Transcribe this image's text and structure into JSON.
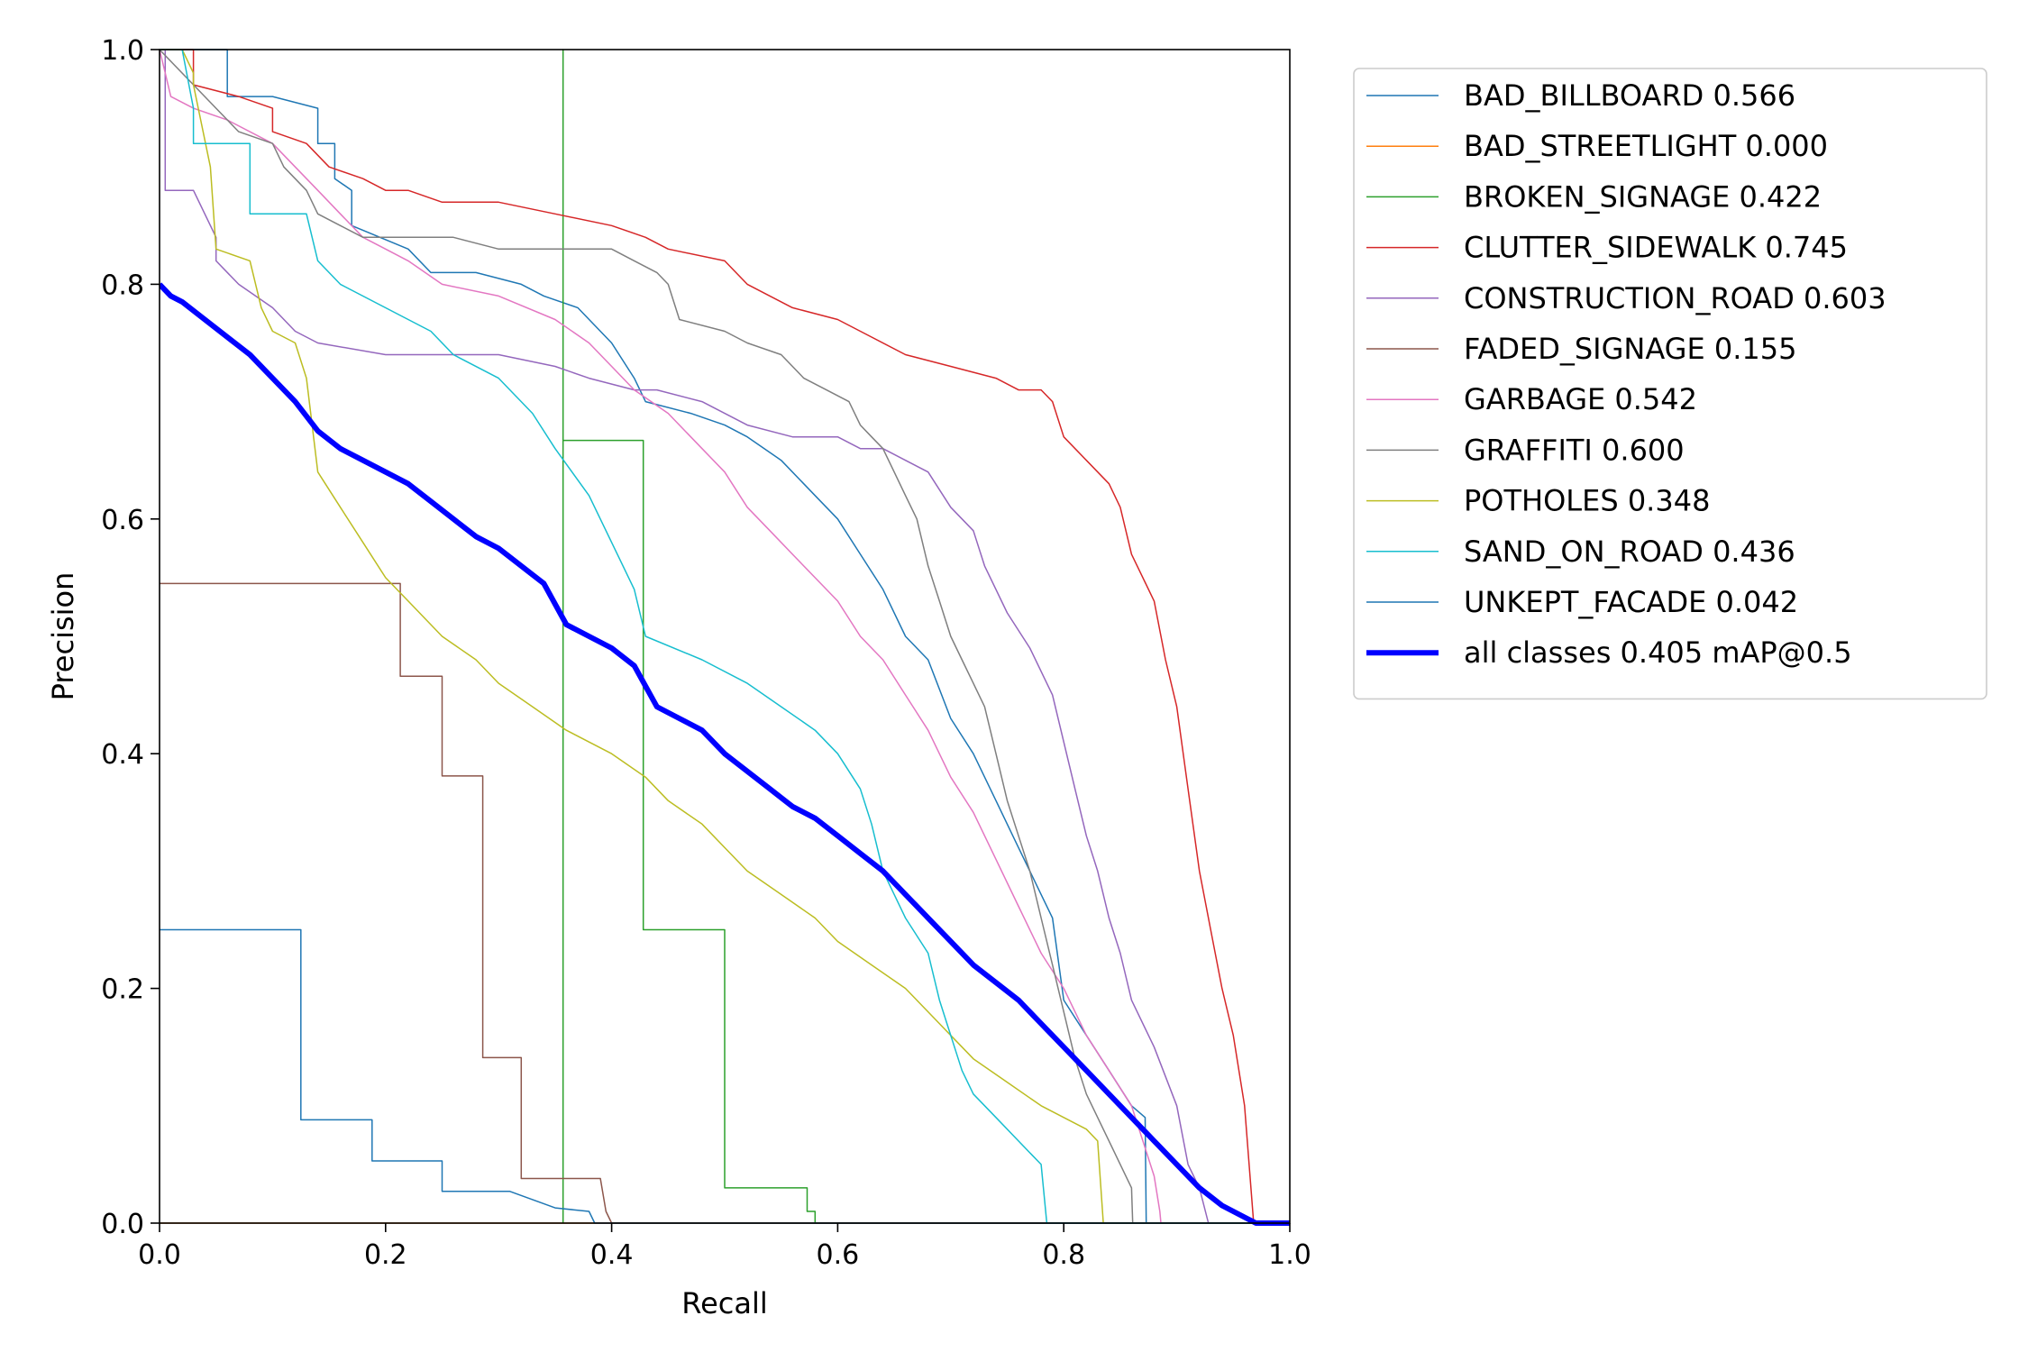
{
  "chart_data": {
    "type": "line",
    "title": "",
    "xlabel": "Recall",
    "ylabel": "Precision",
    "xlim": [
      0,
      1
    ],
    "ylim": [
      0,
      1
    ],
    "xticks": [
      "0.0",
      "0.2",
      "0.4",
      "0.6",
      "0.8",
      "1.0"
    ],
    "yticks": [
      "0.0",
      "0.2",
      "0.4",
      "0.6",
      "0.8",
      "1.0"
    ],
    "grid": false,
    "legend_position": "outside-top-right",
    "series": [
      {
        "name": "BAD_BILLBOARD 0.566",
        "color": "#1f77b4",
        "width": 1.5,
        "x": [
          0,
          0.03,
          0.06,
          0.06,
          0.1,
          0.14,
          0.14,
          0.155,
          0.155,
          0.17,
          0.17,
          0.22,
          0.24,
          0.28,
          0.32,
          0.34,
          0.37,
          0.4,
          0.42,
          0.43,
          0.47,
          0.5,
          0.52,
          0.55,
          0.58,
          0.6,
          0.62,
          0.64,
          0.66,
          0.68,
          0.7,
          0.72,
          0.74,
          0.76,
          0.78,
          0.79,
          0.8,
          0.82,
          0.84,
          0.86,
          0.872,
          0.873,
          1.0
        ],
        "y": [
          1.0,
          1.0,
          1.0,
          0.96,
          0.96,
          0.95,
          0.92,
          0.92,
          0.89,
          0.88,
          0.85,
          0.83,
          0.81,
          0.81,
          0.8,
          0.79,
          0.78,
          0.75,
          0.72,
          0.7,
          0.69,
          0.68,
          0.67,
          0.65,
          0.62,
          0.6,
          0.57,
          0.54,
          0.5,
          0.48,
          0.43,
          0.4,
          0.36,
          0.32,
          0.28,
          0.26,
          0.19,
          0.16,
          0.13,
          0.1,
          0.09,
          0.0,
          0.0
        ]
      },
      {
        "name": "BAD_STREETLIGHT 0.000",
        "color": "#ff7f0e",
        "width": 1.5,
        "x": [
          0,
          1.0
        ],
        "y": [
          0.0,
          0.0
        ]
      },
      {
        "name": "BROKEN_SIGNAGE 0.422",
        "color": "#2ca02c",
        "width": 1.5,
        "x": [
          0.357,
          0.357,
          0.357,
          0.428,
          0.428,
          0.5,
          0.5,
          0.573,
          0.573,
          0.58,
          0.58,
          1.0
        ],
        "y": [
          0.0,
          1.0,
          0.667,
          0.667,
          0.25,
          0.25,
          0.03,
          0.03,
          0.01,
          0.01,
          0.0,
          0.0
        ]
      },
      {
        "name": "CLUTTER_SIDEWALK 0.745",
        "color": "#d62728",
        "width": 1.5,
        "x": [
          0,
          0.03,
          0.03,
          0.07,
          0.1,
          0.1,
          0.13,
          0.15,
          0.18,
          0.2,
          0.22,
          0.25,
          0.3,
          0.35,
          0.4,
          0.43,
          0.45,
          0.5,
          0.52,
          0.56,
          0.6,
          0.62,
          0.66,
          0.7,
          0.74,
          0.76,
          0.78,
          0.79,
          0.8,
          0.82,
          0.84,
          0.85,
          0.86,
          0.88,
          0.89,
          0.9,
          0.91,
          0.92,
          0.93,
          0.94,
          0.95,
          0.96,
          0.968,
          0.969,
          1.0
        ],
        "y": [
          1.0,
          1.0,
          0.97,
          0.96,
          0.95,
          0.93,
          0.92,
          0.9,
          0.89,
          0.88,
          0.88,
          0.87,
          0.87,
          0.86,
          0.85,
          0.84,
          0.83,
          0.82,
          0.8,
          0.78,
          0.77,
          0.76,
          0.74,
          0.73,
          0.72,
          0.71,
          0.71,
          0.7,
          0.67,
          0.65,
          0.63,
          0.61,
          0.57,
          0.53,
          0.48,
          0.44,
          0.37,
          0.3,
          0.25,
          0.2,
          0.16,
          0.1,
          0.0,
          0.0,
          0.0
        ]
      },
      {
        "name": "CONSTRUCTION_ROAD 0.603",
        "color": "#9467bd",
        "width": 1.5,
        "x": [
          0,
          0.005,
          0.005,
          0.03,
          0.04,
          0.05,
          0.05,
          0.07,
          0.1,
          0.12,
          0.14,
          0.2,
          0.3,
          0.35,
          0.38,
          0.42,
          0.44,
          0.48,
          0.52,
          0.56,
          0.6,
          0.62,
          0.64,
          0.66,
          0.68,
          0.7,
          0.72,
          0.73,
          0.75,
          0.77,
          0.79,
          0.8,
          0.81,
          0.82,
          0.83,
          0.84,
          0.85,
          0.86,
          0.88,
          0.9,
          0.91,
          0.92,
          0.928,
          0.929,
          1.0
        ],
        "y": [
          1.0,
          1.0,
          0.88,
          0.88,
          0.86,
          0.84,
          0.82,
          0.8,
          0.78,
          0.76,
          0.75,
          0.74,
          0.74,
          0.73,
          0.72,
          0.71,
          0.71,
          0.7,
          0.68,
          0.67,
          0.67,
          0.66,
          0.66,
          0.65,
          0.64,
          0.61,
          0.59,
          0.56,
          0.52,
          0.49,
          0.45,
          0.41,
          0.37,
          0.33,
          0.3,
          0.26,
          0.23,
          0.19,
          0.15,
          0.1,
          0.05,
          0.03,
          0.0,
          0.0,
          0.0
        ]
      },
      {
        "name": "FADED_SIGNAGE 0.155",
        "color": "#8c564b",
        "width": 1.5,
        "x": [
          0,
          0.213,
          0.213,
          0.25,
          0.25,
          0.286,
          0.286,
          0.32,
          0.32,
          0.39,
          0.395,
          0.4,
          1.0
        ],
        "y": [
          0.545,
          0.545,
          0.466,
          0.466,
          0.381,
          0.381,
          0.141,
          0.141,
          0.038,
          0.038,
          0.01,
          0.0,
          0.0
        ]
      },
      {
        "name": "GARBAGE 0.542",
        "color": "#e377c2",
        "width": 1.5,
        "x": [
          0,
          0.005,
          0.01,
          0.03,
          0.06,
          0.1,
          0.12,
          0.14,
          0.16,
          0.18,
          0.2,
          0.22,
          0.25,
          0.3,
          0.35,
          0.38,
          0.4,
          0.42,
          0.45,
          0.48,
          0.5,
          0.52,
          0.54,
          0.56,
          0.58,
          0.6,
          0.62,
          0.64,
          0.66,
          0.68,
          0.7,
          0.72,
          0.74,
          0.76,
          0.78,
          0.8,
          0.82,
          0.84,
          0.86,
          0.87,
          0.88,
          0.885,
          0.886,
          1.0
        ],
        "y": [
          1.0,
          0.98,
          0.96,
          0.95,
          0.94,
          0.92,
          0.9,
          0.88,
          0.86,
          0.84,
          0.83,
          0.82,
          0.8,
          0.79,
          0.77,
          0.75,
          0.73,
          0.71,
          0.69,
          0.66,
          0.64,
          0.61,
          0.59,
          0.57,
          0.55,
          0.53,
          0.5,
          0.48,
          0.45,
          0.42,
          0.38,
          0.35,
          0.31,
          0.27,
          0.23,
          0.2,
          0.16,
          0.13,
          0.1,
          0.07,
          0.04,
          0.01,
          0.0,
          0.0
        ]
      },
      {
        "name": "GRAFFITI 0.600",
        "color": "#7f7f7f",
        "width": 1.5,
        "x": [
          0,
          0.05,
          0.07,
          0.1,
          0.11,
          0.13,
          0.14,
          0.16,
          0.18,
          0.22,
          0.26,
          0.3,
          0.35,
          0.4,
          0.42,
          0.44,
          0.45,
          0.46,
          0.5,
          0.52,
          0.55,
          0.57,
          0.59,
          0.61,
          0.62,
          0.63,
          0.64,
          0.65,
          0.66,
          0.67,
          0.68,
          0.69,
          0.7,
          0.71,
          0.72,
          0.73,
          0.74,
          0.75,
          0.76,
          0.77,
          0.78,
          0.79,
          0.8,
          0.81,
          0.82,
          0.83,
          0.84,
          0.85,
          0.86,
          0.861,
          1.0
        ],
        "y": [
          1.0,
          0.95,
          0.93,
          0.92,
          0.9,
          0.88,
          0.86,
          0.85,
          0.84,
          0.84,
          0.84,
          0.83,
          0.83,
          0.83,
          0.82,
          0.81,
          0.8,
          0.77,
          0.76,
          0.75,
          0.74,
          0.72,
          0.71,
          0.7,
          0.68,
          0.67,
          0.66,
          0.64,
          0.62,
          0.6,
          0.56,
          0.53,
          0.5,
          0.48,
          0.46,
          0.44,
          0.4,
          0.36,
          0.33,
          0.3,
          0.26,
          0.22,
          0.18,
          0.14,
          0.11,
          0.09,
          0.07,
          0.05,
          0.03,
          0.0,
          0.0
        ]
      },
      {
        "name": "POTHOLES 0.348",
        "color": "#bcbd22",
        "width": 1.5,
        "x": [
          0,
          0.02,
          0.03,
          0.03,
          0.045,
          0.05,
          0.08,
          0.09,
          0.1,
          0.12,
          0.13,
          0.135,
          0.14,
          0.16,
          0.18,
          0.2,
          0.22,
          0.25,
          0.28,
          0.3,
          0.33,
          0.36,
          0.4,
          0.43,
          0.45,
          0.48,
          0.5,
          0.52,
          0.55,
          0.58,
          0.6,
          0.63,
          0.66,
          0.68,
          0.7,
          0.72,
          0.75,
          0.78,
          0.8,
          0.82,
          0.83,
          0.835,
          0.836,
          1.0
        ],
        "y": [
          1.0,
          1.0,
          0.98,
          0.97,
          0.9,
          0.83,
          0.82,
          0.78,
          0.76,
          0.75,
          0.72,
          0.68,
          0.64,
          0.61,
          0.58,
          0.55,
          0.53,
          0.5,
          0.48,
          0.46,
          0.44,
          0.42,
          0.4,
          0.38,
          0.36,
          0.34,
          0.32,
          0.3,
          0.28,
          0.26,
          0.24,
          0.22,
          0.2,
          0.18,
          0.16,
          0.14,
          0.12,
          0.1,
          0.09,
          0.08,
          0.07,
          0.0,
          0.0,
          0.0
        ]
      },
      {
        "name": "SAND_ON_ROAD 0.436",
        "color": "#17becf",
        "width": 1.5,
        "x": [
          0,
          0.02,
          0.03,
          0.03,
          0.08,
          0.08,
          0.13,
          0.14,
          0.16,
          0.22,
          0.24,
          0.26,
          0.3,
          0.33,
          0.35,
          0.38,
          0.4,
          0.42,
          0.43,
          0.48,
          0.52,
          0.55,
          0.58,
          0.6,
          0.62,
          0.63,
          0.64,
          0.65,
          0.66,
          0.68,
          0.69,
          0.7,
          0.71,
          0.72,
          0.74,
          0.76,
          0.78,
          0.785,
          0.786,
          1.0
        ],
        "y": [
          1.0,
          1.0,
          0.95,
          0.92,
          0.92,
          0.86,
          0.86,
          0.82,
          0.8,
          0.77,
          0.76,
          0.74,
          0.72,
          0.69,
          0.66,
          0.62,
          0.58,
          0.54,
          0.5,
          0.48,
          0.46,
          0.44,
          0.42,
          0.4,
          0.37,
          0.34,
          0.3,
          0.28,
          0.26,
          0.23,
          0.19,
          0.16,
          0.13,
          0.11,
          0.09,
          0.07,
          0.05,
          0.0,
          0.0,
          0.0
        ]
      },
      {
        "name": "UNKEPT_FACADE 0.042",
        "color": "#1f77b4",
        "width": 1.5,
        "x": [
          0,
          0.125,
          0.125,
          0.188,
          0.188,
          0.25,
          0.25,
          0.31,
          0.35,
          0.38,
          0.385,
          0.386,
          1.0
        ],
        "y": [
          0.25,
          0.25,
          0.088,
          0.088,
          0.053,
          0.053,
          0.027,
          0.027,
          0.013,
          0.01,
          0.0,
          0.0,
          0.0
        ]
      },
      {
        "name": "all classes 0.405 mAP@0.5",
        "color": "#0000ff",
        "width": 6,
        "x": [
          0,
          0.01,
          0.02,
          0.04,
          0.06,
          0.08,
          0.1,
          0.12,
          0.14,
          0.16,
          0.18,
          0.2,
          0.22,
          0.24,
          0.26,
          0.28,
          0.3,
          0.32,
          0.34,
          0.36,
          0.38,
          0.4,
          0.42,
          0.44,
          0.46,
          0.48,
          0.5,
          0.52,
          0.54,
          0.56,
          0.58,
          0.6,
          0.62,
          0.64,
          0.66,
          0.68,
          0.7,
          0.72,
          0.74,
          0.76,
          0.78,
          0.8,
          0.82,
          0.84,
          0.86,
          0.88,
          0.9,
          0.92,
          0.94,
          0.96,
          0.97,
          1.0
        ],
        "y": [
          0.8,
          0.79,
          0.785,
          0.77,
          0.755,
          0.74,
          0.72,
          0.7,
          0.675,
          0.66,
          0.65,
          0.64,
          0.63,
          0.615,
          0.6,
          0.585,
          0.575,
          0.56,
          0.545,
          0.51,
          0.5,
          0.49,
          0.475,
          0.44,
          0.43,
          0.42,
          0.4,
          0.385,
          0.37,
          0.355,
          0.345,
          0.33,
          0.315,
          0.3,
          0.28,
          0.26,
          0.24,
          0.22,
          0.205,
          0.19,
          0.17,
          0.15,
          0.13,
          0.11,
          0.09,
          0.07,
          0.05,
          0.03,
          0.015,
          0.005,
          0.0,
          0.0
        ]
      }
    ]
  }
}
